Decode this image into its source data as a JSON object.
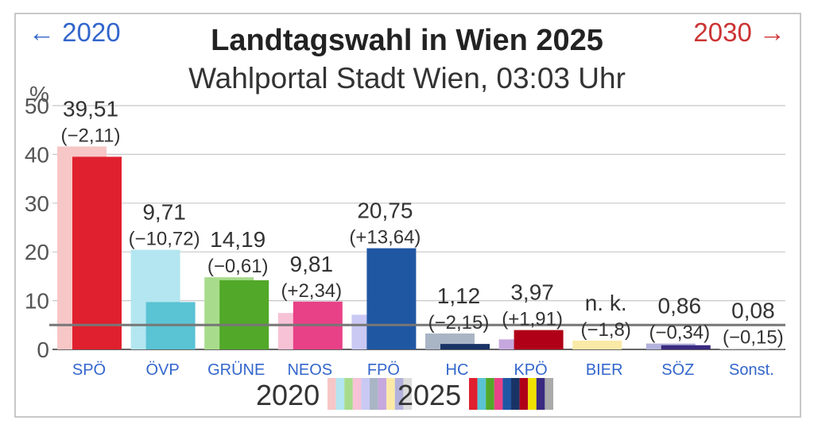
{
  "nav": {
    "prev": "← 2020",
    "next": "2030 →"
  },
  "header": {
    "title": "Landtagswahl in Wien 2025",
    "subtitle": "Wahlportal Stadt Wien, 03:03 Uhr"
  },
  "chart_data": {
    "type": "bar",
    "title": "Landtagswahl in Wien 2025",
    "subtitle": "Wahlportal Stadt Wien, 03:03 Uhr",
    "ylabel": "%",
    "ylim": [
      0,
      50
    ],
    "yticks": [
      0,
      10,
      20,
      30,
      40,
      50
    ],
    "grid": true,
    "threshold": 5,
    "categories": [
      "SPÖ",
      "ÖVP",
      "GRÜNE",
      "NEOS",
      "FPÖ",
      "HC",
      "KPÖ",
      "BIER",
      "SÖZ",
      "Sonst."
    ],
    "category_colors": [
      "#3366cc",
      "#3366cc",
      "#3366cc",
      "#8888dd",
      "#3366cc",
      "#3366cc",
      "#3366cc",
      "#3366cc",
      "#3366cc",
      "#222222"
    ],
    "series": [
      {
        "name": "2020",
        "values": [
          41.62,
          20.43,
          14.8,
          7.47,
          7.11,
          3.27,
          2.06,
          1.8,
          1.2,
          0.23
        ],
        "colors": [
          "#f7c6c6",
          "#b3e6f0",
          "#a8dc8c",
          "#f7c2d6",
          "#c9c9f4",
          "#a9b5c5",
          "#c6a8de",
          "#fbe9a8",
          "#b2b2dc",
          "#dddddd"
        ]
      },
      {
        "name": "2025",
        "values": [
          39.51,
          9.71,
          14.19,
          9.81,
          20.75,
          1.12,
          3.97,
          null,
          0.86,
          0.08
        ],
        "colors": [
          "#e0202e",
          "#5ac3d4",
          "#52a829",
          "#e84187",
          "#2057a3",
          "#193366",
          "#b00018",
          "#f0e000",
          "#3a2a80",
          "#cccccc"
        ]
      }
    ],
    "value_labels": [
      "39,51",
      "9,71",
      "14,19",
      "9,81",
      "20,75",
      "1,12",
      "3,97",
      "n. k.",
      "0,86",
      "0,08"
    ],
    "change_labels": [
      "(−2,11)",
      "(−10,72)",
      "(−0,61)",
      "(+2,34)",
      "(+13,64)",
      "(−2,15)",
      "(+1,91)",
      "(−1,8)",
      "(−0,34)",
      "(−0,15)"
    ],
    "legend": [
      {
        "label": "2020",
        "swatches": [
          "#f7c6c6",
          "#b3e6f0",
          "#a8dc8c",
          "#f7c2d6",
          "#c9c9f4",
          "#a9b5c5",
          "#c6a8de",
          "#fbe9a8",
          "#b2b2dc",
          "#dddddd"
        ]
      },
      {
        "label": "2025",
        "swatches": [
          "#e0202e",
          "#5ac3d4",
          "#52a829",
          "#e84187",
          "#2057a3",
          "#193366",
          "#b00018",
          "#f0e000",
          "#3a2a80",
          "#aaaaaa"
        ]
      }
    ]
  }
}
